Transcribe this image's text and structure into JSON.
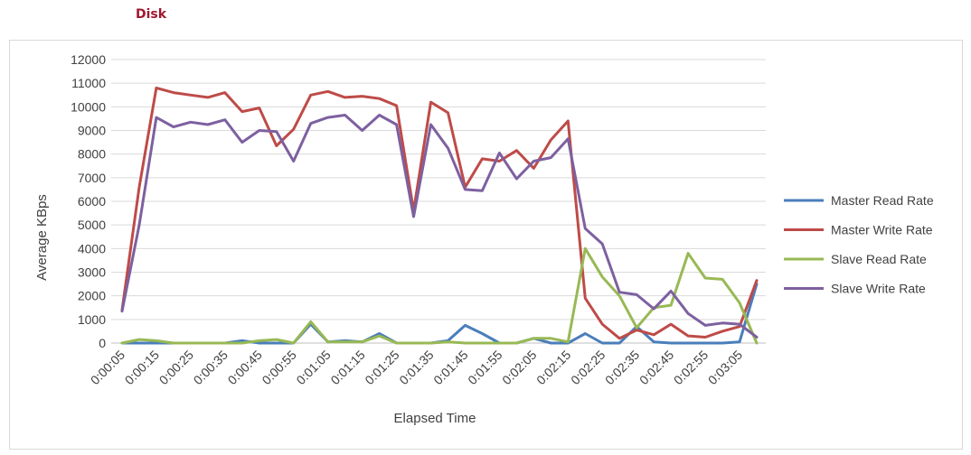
{
  "page": {
    "title": "Disk"
  },
  "chart_data": {
    "type": "line",
    "xlabel": "Elapsed Time",
    "ylabel": "Average KBps",
    "ylim": [
      0,
      12000
    ],
    "y_ticks": [
      0,
      1000,
      2000,
      3000,
      4000,
      5000,
      6000,
      7000,
      8000,
      9000,
      10000,
      11000,
      12000
    ],
    "grid": "horizontal",
    "legend_position": "right",
    "x": [
      "0:00:05",
      "0:00:10",
      "0:00:15",
      "0:00:20",
      "0:00:25",
      "0:00:30",
      "0:00:35",
      "0:00:40",
      "0:00:45",
      "0:00:50",
      "0:00:55",
      "0:01:00",
      "0:01:05",
      "0:01:10",
      "0:01:15",
      "0:01:20",
      "0:01:25",
      "0:01:30",
      "0:01:35",
      "0:01:40",
      "0:01:45",
      "0:01:50",
      "0:01:55",
      "0:02:00",
      "0:02:05",
      "0:02:10",
      "0:02:15",
      "0:02:20",
      "0:02:25",
      "0:02:30",
      "0:02:35",
      "0:02:40",
      "0:02:45",
      "0:02:50",
      "0:02:55",
      "0:03:00",
      "0:03:05",
      "0:03:10"
    ],
    "x_tick_labels": [
      "0:00:05",
      "0:00:15",
      "0:00:25",
      "0:00:35",
      "0:00:45",
      "0:00:55",
      "0:01:05",
      "0:01:15",
      "0:01:25",
      "0:01:35",
      "0:01:45",
      "0:01:55",
      "0:02:05",
      "0:02:15",
      "0:02:25",
      "0:02:35",
      "0:02:45",
      "0:02:55",
      "0:03:05"
    ],
    "series": [
      {
        "name": "Master Read Rate",
        "color": "#4a7ebb",
        "values": [
          0,
          0,
          0,
          0,
          0,
          0,
          0,
          100,
          0,
          0,
          0,
          800,
          50,
          100,
          50,
          400,
          0,
          0,
          0,
          100,
          750,
          400,
          0,
          0,
          200,
          0,
          0,
          400,
          0,
          0,
          700,
          50,
          0,
          0,
          0,
          0,
          50,
          2500
        ]
      },
      {
        "name": "Master Write Rate",
        "color": "#be4b48",
        "values": [
          1400,
          6600,
          10800,
          10600,
          10500,
          10400,
          10600,
          9800,
          9950,
          8350,
          9050,
          10500,
          10650,
          10400,
          10450,
          10350,
          10050,
          5600,
          10200,
          9750,
          6600,
          7800,
          7700,
          8150,
          7400,
          8600,
          9400,
          1900,
          800,
          200,
          550,
          350,
          800,
          300,
          250,
          500,
          700,
          2650
        ]
      },
      {
        "name": "Slave Read Rate",
        "color": "#98b954",
        "values": [
          0,
          150,
          100,
          0,
          0,
          0,
          0,
          0,
          100,
          150,
          0,
          900,
          50,
          50,
          50,
          300,
          0,
          0,
          0,
          50,
          0,
          0,
          0,
          0,
          200,
          200,
          50,
          4000,
          2800,
          2000,
          650,
          1500,
          1600,
          3800,
          2750,
          2700,
          1700,
          0
        ]
      },
      {
        "name": "Slave Write Rate",
        "color": "#7d60a0",
        "values": [
          1350,
          5000,
          9550,
          9150,
          9350,
          9250,
          9450,
          8500,
          9000,
          8950,
          7700,
          9300,
          9550,
          9650,
          9000,
          9650,
          9250,
          5350,
          9250,
          8250,
          6500,
          6450,
          8050,
          6950,
          7700,
          7850,
          8650,
          4850,
          4200,
          2150,
          2050,
          1450,
          2200,
          1250,
          750,
          850,
          800,
          250
        ]
      }
    ]
  }
}
